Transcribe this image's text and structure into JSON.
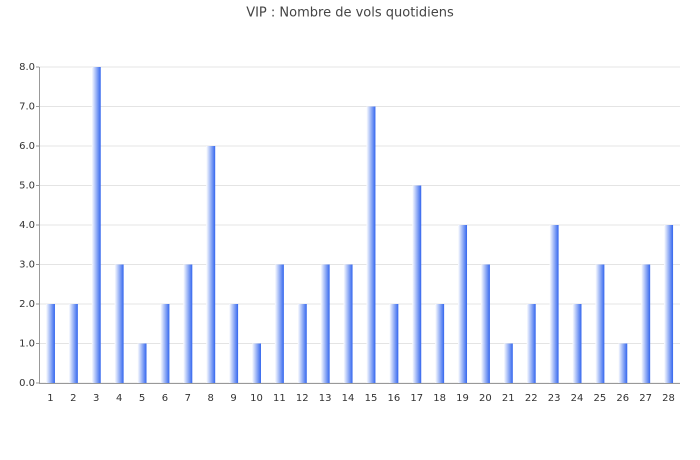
{
  "chart_data": {
    "type": "bar",
    "title": "VIP : Nombre de vols quotidiens",
    "categories": [
      "1",
      "2",
      "3",
      "4",
      "5",
      "6",
      "7",
      "8",
      "9",
      "10",
      "11",
      "12",
      "13",
      "14",
      "15",
      "16",
      "17",
      "18",
      "19",
      "20",
      "21",
      "22",
      "23",
      "24",
      "25",
      "26",
      "27",
      "28"
    ],
    "values": [
      2,
      2,
      8,
      3,
      1,
      2,
      3,
      6,
      2,
      1,
      3,
      2,
      3,
      3,
      7,
      2,
      5,
      2,
      4,
      3,
      1,
      2,
      4,
      2,
      3,
      1,
      3,
      4
    ],
    "color": "#3366ee",
    "ylim": [
      0,
      8
    ],
    "yticks": [
      {
        "value": 0,
        "label": "0.0"
      },
      {
        "value": 1,
        "label": "1.0"
      },
      {
        "value": 2,
        "label": "2.0"
      },
      {
        "value": 3,
        "label": "3.0"
      },
      {
        "value": 4,
        "label": "4.0"
      },
      {
        "value": 5,
        "label": "5.0"
      },
      {
        "value": 6,
        "label": "6.0"
      },
      {
        "value": 7,
        "label": "7.0"
      },
      {
        "value": 8,
        "label": "8.0"
      }
    ],
    "grid": true
  }
}
